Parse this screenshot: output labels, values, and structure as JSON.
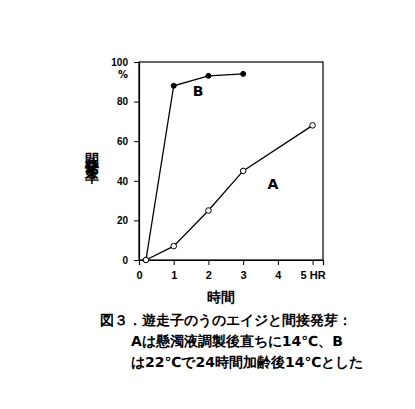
{
  "chart_data": {
    "type": "line",
    "caption": [
      "図３．遊走子のうのエイジと間接発芽：",
      "Aは懸濁液調製後直ちに14℃、B",
      "は22℃で24時間加齢後14℃とした"
    ],
    "x_label": "時間",
    "y_label": "間接発芽率",
    "annotations": [
      {
        "text": "%"
      }
    ],
    "x": [
      0.2,
      1,
      2,
      3,
      5
    ],
    "series": [
      {
        "name": "A",
        "color": "#000000",
        "marker": "open_circle",
        "line_style": "solid",
        "values": [
          0,
          7,
          25,
          45,
          68
        ]
      },
      {
        "name": "B",
        "color": "#000000",
        "marker": "filled_circle",
        "line_style": "solid",
        "values": [
          0,
          88,
          93,
          94,
          null
        ]
      }
    ],
    "xlim": [
      0,
      5.3
    ],
    "ylim": [
      0,
      100
    ],
    "xticks": [
      0,
      1,
      2,
      3,
      4,
      {
        "value": 5,
        "label": "5 HR"
      }
    ],
    "yticks": [
      0,
      20,
      40,
      60,
      80,
      100
    ],
    "grid": false
  }
}
